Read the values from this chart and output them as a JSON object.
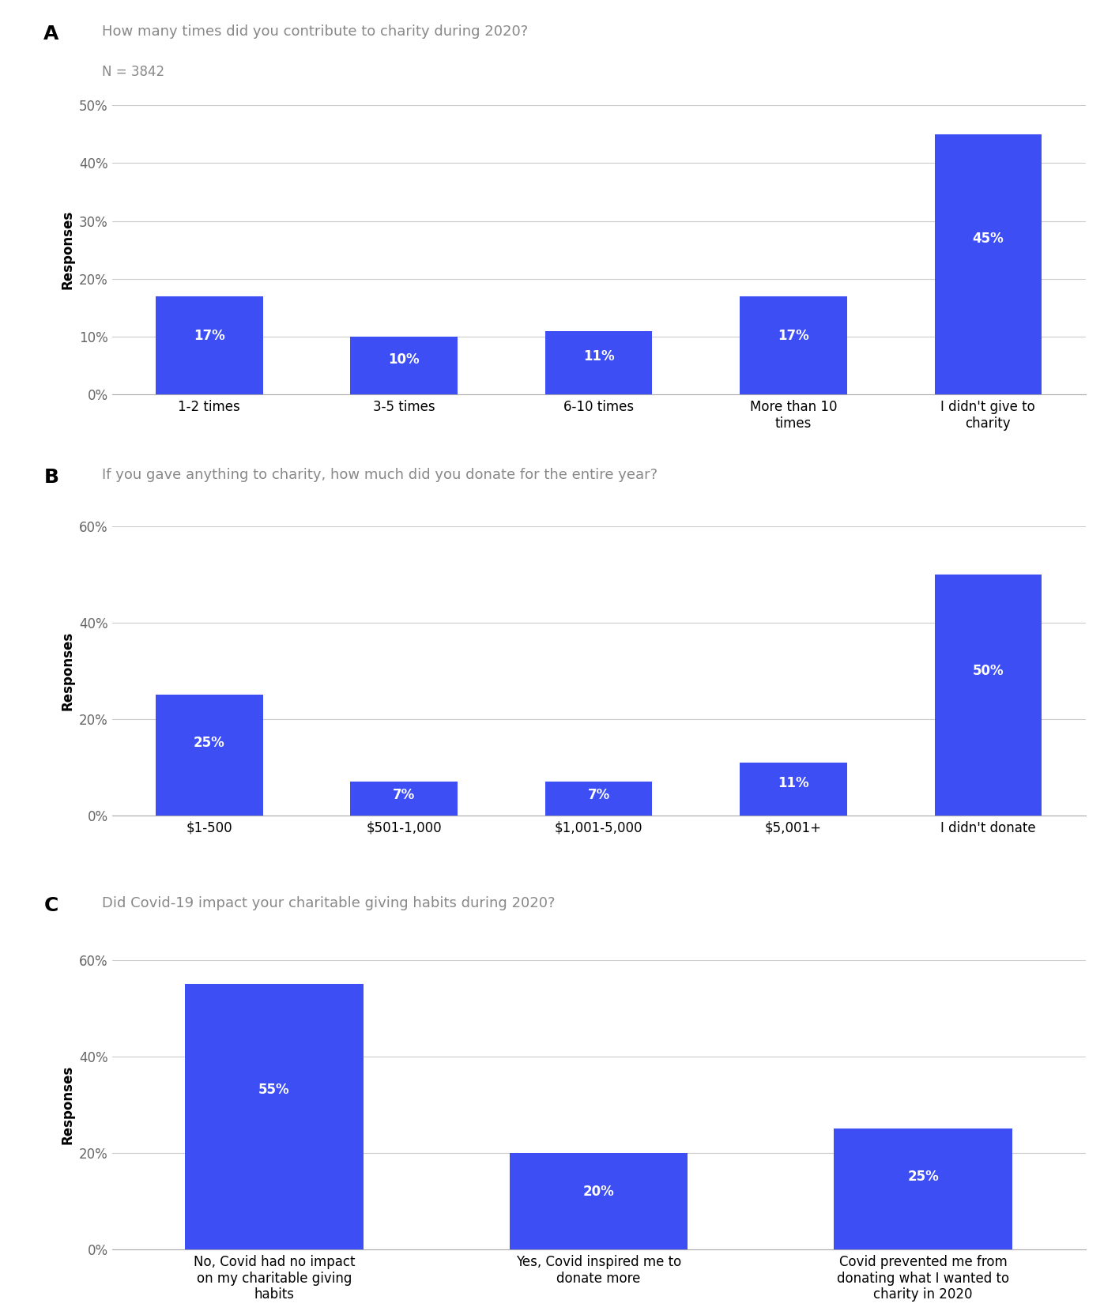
{
  "chart_A": {
    "title": "How many times did you contribute to charity during 2020?",
    "subtitle": "N = 3842",
    "panel_label": "A",
    "categories": [
      "1-2 times",
      "3-5 times",
      "6-10 times",
      "More than 10\ntimes",
      "I didn't give to\ncharity"
    ],
    "values": [
      17,
      10,
      11,
      17,
      45
    ],
    "ylim": [
      0,
      50
    ],
    "yticks": [
      0,
      10,
      20,
      30,
      40,
      50
    ],
    "ytick_labels": [
      "0%",
      "10%",
      "20%",
      "30%",
      "40%",
      "50%"
    ]
  },
  "chart_B": {
    "title": "If you gave anything to charity, how much did you donate for the entire year?",
    "panel_label": "B",
    "categories": [
      "$1-500",
      "$501-1,000",
      "$1,001-5,000",
      "$5,001+",
      "I didn't donate"
    ],
    "values": [
      25,
      7,
      7,
      11,
      50
    ],
    "ylim": [
      0,
      60
    ],
    "yticks": [
      0,
      20,
      40,
      60
    ],
    "ytick_labels": [
      "0%",
      "20%",
      "40%",
      "60%"
    ]
  },
  "chart_C": {
    "title": "Did Covid-19 impact your charitable giving habits during 2020?",
    "panel_label": "C",
    "categories": [
      "No, Covid had no impact\non my charitable giving\nhabits",
      "Yes, Covid inspired me to\ndonate more",
      "Covid prevented me from\ndonating what I wanted to\ncharity in 2020"
    ],
    "values": [
      55,
      20,
      25
    ],
    "ylim": [
      0,
      60
    ],
    "yticks": [
      0,
      20,
      40,
      60
    ],
    "ytick_labels": [
      "0%",
      "20%",
      "40%",
      "60%"
    ]
  },
  "bar_color": "#3D4EF5",
  "background_color": "#ffffff",
  "ylabel": "Responses",
  "title_fontsize": 13,
  "panel_label_fontsize": 18,
  "subtitle_fontsize": 12,
  "tick_fontsize": 12,
  "bar_label_fontsize": 12,
  "ylabel_fontsize": 12
}
